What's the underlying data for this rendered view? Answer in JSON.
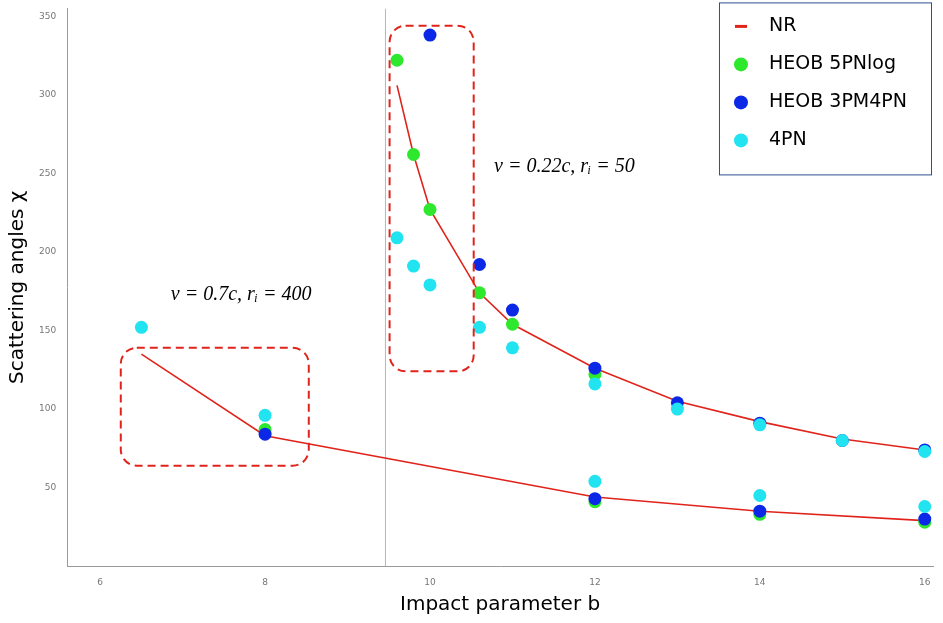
{
  "chart_data": {
    "type": "scatter",
    "x_label": "Impact parameter b",
    "y_label": "Scattering angles χ",
    "xlim": [
      5.6,
      16.1
    ],
    "xticks": [
      6,
      8,
      10,
      12,
      14,
      16
    ],
    "ylim": [
      0,
      355
    ],
    "yticks": [
      50,
      100,
      150,
      200,
      250,
      300,
      350
    ],
    "grid": false,
    "legend": "upper right",
    "vertical_line": 9.46,
    "series": [
      {
        "name": "NR",
        "type": "line",
        "color": "#e0241b",
        "marker": "none",
        "line_style": "solid",
        "x": [
          9.6,
          9.8,
          10,
          10.6,
          11,
          12,
          13,
          14,
          15,
          16,
          null,
          6.5,
          8,
          12,
          14,
          16
        ],
        "values": [
          306,
          262,
          227,
          174,
          154,
          126,
          105,
          92,
          81,
          74,
          null,
          135,
          83,
          44,
          35,
          29
        ]
      },
      {
        "name": "HEOB 5PNlog",
        "type": "scatter",
        "color": "#2ee82e",
        "marker": "circle",
        "x": [
          9.6,
          9.8,
          10,
          10.6,
          11,
          12,
          8,
          12,
          14,
          16
        ],
        "values": [
          322,
          262,
          227,
          174,
          154,
          122,
          87,
          41,
          33,
          28
        ]
      },
      {
        "name": "HEOB 3PM4PN",
        "type": "scatter",
        "color": "#0a28e6",
        "marker": "circle",
        "x": [
          10,
          10.6,
          11,
          12,
          13,
          14,
          15,
          16,
          8,
          12,
          14,
          16
        ],
        "values": [
          338,
          192,
          163,
          126,
          104,
          91,
          80,
          74,
          84,
          43,
          35,
          30
        ]
      },
      {
        "name": "4PN",
        "type": "scatter",
        "color": "#22e3f0",
        "marker": "circle",
        "x": [
          6.5,
          8,
          12,
          14,
          16,
          9.6,
          9.8,
          10,
          10.6,
          11,
          12,
          13,
          14,
          15,
          16
        ],
        "values": [
          152,
          96,
          54,
          45,
          38,
          209,
          191,
          179,
          152,
          139,
          116,
          100,
          90,
          80,
          73
        ]
      }
    ],
    "annotations": [
      {
        "text": "v = 0.7c, rᵢ = 400",
        "x": 7.71,
        "y": 173,
        "box": {
          "xlim": [
            6.25,
            8.53
          ],
          "ylim": [
            64,
            139
          ]
        }
      },
      {
        "text": "v = 0.22c, rᵢ = 50",
        "x": 11.63,
        "y": 254,
        "box": {
          "xlim": [
            9.51,
            10.53
          ],
          "ylim": [
            124,
            344
          ]
        }
      }
    ]
  }
}
